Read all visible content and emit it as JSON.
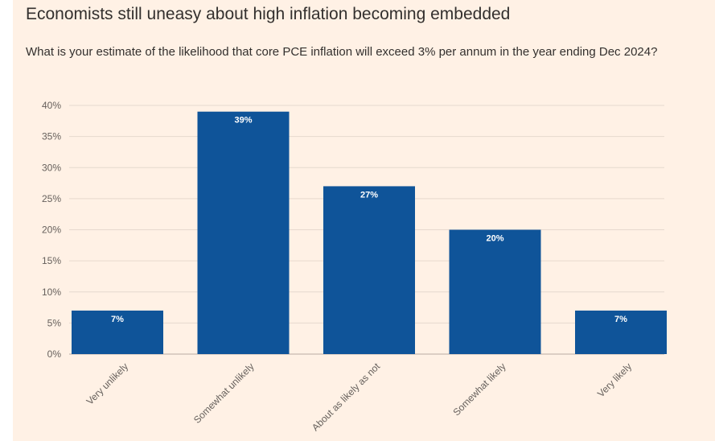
{
  "chart_data": {
    "type": "bar",
    "title": "Economists still uneasy about high inflation becoming embedded",
    "subtitle": "What is your estimate of the likelihood that core PCE inflation will exceed 3% per annum in the year ending Dec 2024?",
    "categories": [
      "Very unlikely",
      "Somewhat unlikely",
      "About as likely as not",
      "Somewhat likely",
      "Very likely"
    ],
    "values": [
      7,
      39,
      27,
      20,
      7
    ],
    "data_labels": [
      "7%",
      "39%",
      "27%",
      "20%",
      "7%"
    ],
    "y_ticks": [
      "0%",
      "5%",
      "10%",
      "15%",
      "20%",
      "25%",
      "30%",
      "35%",
      "40%"
    ],
    "ylim": [
      0,
      40
    ],
    "grid": true,
    "colors": {
      "bar": "#0f5499",
      "background": "#fff1e5",
      "grid": "#e6d9ce",
      "text": "#33302e"
    }
  }
}
